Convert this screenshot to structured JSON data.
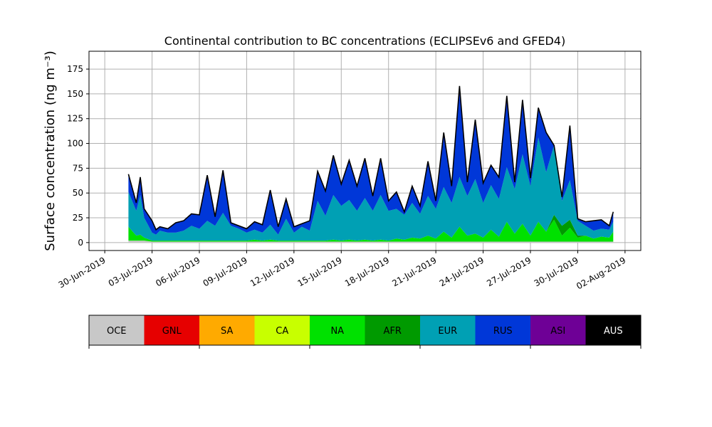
{
  "chart_data": {
    "type": "area",
    "title": "Continental contribution to BC concentrations (ECLIPSEv6 and GFED4)",
    "ylabel": "Surface concentration (ng m⁻³)",
    "xlabel": "",
    "xlim": [
      "2019-06-29",
      "2019-08-03"
    ],
    "ylim": [
      -8,
      193
    ],
    "yticks": [
      0,
      25,
      50,
      75,
      100,
      125,
      150,
      175
    ],
    "xticks": [
      "30-Jun-2019",
      "03-Jul-2019",
      "06-Jul-2019",
      "09-Jul-2019",
      "12-Jul-2019",
      "15-Jul-2019",
      "18-Jul-2019",
      "21-Jul-2019",
      "24-Jul-2019",
      "27-Jul-2019",
      "30-Jul-2019",
      "02-Aug-2019"
    ],
    "xtick_dates": [
      "2019-06-30",
      "2019-07-03",
      "2019-07-06",
      "2019-07-09",
      "2019-07-12",
      "2019-07-15",
      "2019-07-18",
      "2019-07-21",
      "2019-07-24",
      "2019-07-27",
      "2019-07-30",
      "2019-08-02"
    ],
    "grid": true,
    "stacked": true,
    "series_order": [
      "OCE",
      "GNL",
      "SA",
      "CA",
      "NA",
      "AFR",
      "EUR",
      "RUS",
      "ASI",
      "AUS"
    ],
    "colors": {
      "OCE": "#c8c8c8",
      "GNL": "#e60000",
      "SA": "#ffaa00",
      "CA": "#c8ff00",
      "NA": "#00e100",
      "AFR": "#009a00",
      "EUR": "#00a0b4",
      "RUS": "#0037d8",
      "ASI": "#6e0096",
      "AUS": "#000000"
    },
    "x": [
      "2019-07-01T12:00",
      "2019-07-02T00:00",
      "2019-07-02T06:00",
      "2019-07-02T12:00",
      "2019-07-03T00:00",
      "2019-07-03T06:00",
      "2019-07-03T12:00",
      "2019-07-04T00:00",
      "2019-07-04T12:00",
      "2019-07-05T00:00",
      "2019-07-05T12:00",
      "2019-07-06T00:00",
      "2019-07-06T12:00",
      "2019-07-07T00:00",
      "2019-07-07T12:00",
      "2019-07-08T00:00",
      "2019-07-08T12:00",
      "2019-07-09T00:00",
      "2019-07-09T12:00",
      "2019-07-10T00:00",
      "2019-07-10T12:00",
      "2019-07-11T00:00",
      "2019-07-11T12:00",
      "2019-07-12T00:00",
      "2019-07-12T12:00",
      "2019-07-13T00:00",
      "2019-07-13T12:00",
      "2019-07-14T00:00",
      "2019-07-14T12:00",
      "2019-07-15T00:00",
      "2019-07-15T12:00",
      "2019-07-16T00:00",
      "2019-07-16T12:00",
      "2019-07-17T00:00",
      "2019-07-17T12:00",
      "2019-07-18T00:00",
      "2019-07-18T12:00",
      "2019-07-19T00:00",
      "2019-07-19T12:00",
      "2019-07-20T00:00",
      "2019-07-20T12:00",
      "2019-07-21T00:00",
      "2019-07-21T12:00",
      "2019-07-22T00:00",
      "2019-07-22T12:00",
      "2019-07-23T00:00",
      "2019-07-23T12:00",
      "2019-07-24T00:00",
      "2019-07-24T12:00",
      "2019-07-25T00:00",
      "2019-07-25T12:00",
      "2019-07-26T00:00",
      "2019-07-26T12:00",
      "2019-07-27T00:00",
      "2019-07-27T12:00",
      "2019-07-28T00:00",
      "2019-07-28T12:00",
      "2019-07-29T00:00",
      "2019-07-29T12:00",
      "2019-07-30T00:00",
      "2019-07-30T12:00",
      "2019-07-31T00:00",
      "2019-07-31T12:00",
      "2019-08-01T00:00",
      "2019-08-01T06:00"
    ],
    "series": [
      {
        "name": "OCE",
        "values": [
          2,
          2,
          2,
          2,
          1,
          1,
          1,
          1,
          1,
          1,
          1,
          1,
          1,
          1,
          1,
          1,
          1,
          1,
          1,
          1,
          1,
          1,
          1,
          1,
          1,
          1,
          1,
          1,
          1,
          1,
          1,
          1,
          1,
          1,
          1,
          1,
          1,
          1,
          1,
          1,
          1,
          1,
          1,
          1,
          1,
          1,
          1,
          1,
          1,
          1,
          1,
          1,
          1,
          1,
          1,
          1,
          1,
          1,
          1,
          1,
          1,
          1,
          1,
          1,
          1
        ]
      },
      {
        "name": "GNL",
        "values": [
          0,
          0,
          0,
          0,
          0,
          0,
          0,
          0,
          0,
          0,
          0,
          0,
          0,
          0,
          0,
          0,
          0,
          0,
          0,
          0,
          0,
          0,
          0,
          0,
          0,
          0,
          0,
          0,
          0,
          0,
          0,
          0,
          0,
          0,
          0,
          0,
          0,
          0,
          0,
          0,
          0,
          0,
          0,
          0,
          0,
          0,
          0,
          0,
          0,
          0,
          0,
          0,
          0,
          0,
          0,
          0,
          0,
          0,
          0,
          0,
          0,
          0,
          0,
          0,
          0
        ]
      },
      {
        "name": "SA",
        "values": [
          0,
          0,
          0,
          0,
          0,
          0,
          0,
          0,
          0,
          0,
          0,
          0,
          0,
          0,
          0,
          0,
          0,
          0,
          0,
          0,
          0,
          0,
          0,
          0,
          0,
          0,
          0,
          0,
          0,
          0,
          0,
          0,
          0,
          0,
          0,
          0,
          0,
          0,
          0,
          0,
          0,
          0,
          0,
          0,
          0,
          0,
          0,
          0,
          0,
          0,
          0,
          0,
          0,
          0,
          0,
          0,
          0,
          0,
          0,
          0,
          0,
          0,
          0,
          0,
          0
        ]
      },
      {
        "name": "CA",
        "values": [
          0,
          0,
          0,
          0,
          0,
          0,
          0,
          0,
          0,
          0,
          0,
          0,
          0,
          0,
          0,
          0,
          0,
          0,
          0,
          0,
          0,
          0,
          0,
          0,
          0,
          0,
          0,
          0,
          0,
          0,
          0,
          0,
          0,
          0,
          0,
          0,
          0,
          0,
          0,
          0,
          0,
          0,
          0,
          0,
          0,
          0,
          0,
          0,
          0,
          0,
          0,
          0,
          0,
          0,
          0,
          0,
          0,
          0,
          0,
          0,
          0,
          0,
          0,
          0,
          0
        ]
      },
      {
        "name": "NA",
        "values": [
          14,
          5,
          6,
          3,
          1,
          1,
          1,
          1,
          1,
          1,
          1,
          1,
          1,
          1,
          1,
          1,
          1,
          1,
          2,
          1,
          2,
          1,
          1,
          1,
          1,
          1,
          1,
          1,
          2,
          1,
          2,
          1,
          2,
          1,
          2,
          1,
          3,
          2,
          4,
          3,
          6,
          3,
          10,
          4,
          15,
          6,
          8,
          4,
          12,
          5,
          20,
          8,
          18,
          6,
          20,
          10,
          22,
          6,
          14,
          4,
          6,
          3,
          5,
          4,
          10
        ]
      },
      {
        "name": "AFR",
        "values": [
          0,
          0,
          0,
          0,
          0,
          0,
          0,
          0,
          0,
          0,
          0,
          0,
          0,
          0,
          0,
          0,
          0,
          0,
          0,
          0,
          0,
          0,
          0,
          0,
          0,
          0,
          0,
          0,
          0,
          0,
          0,
          0,
          0,
          0,
          0,
          0,
          0,
          0,
          0,
          0,
          0,
          0,
          0,
          0,
          0,
          0,
          0,
          0,
          0,
          0,
          0,
          0,
          0,
          0,
          0,
          0,
          5,
          10,
          8,
          2,
          0,
          0,
          0,
          0,
          0
        ]
      },
      {
        "name": "EUR",
        "values": [
          35,
          25,
          40,
          20,
          8,
          6,
          10,
          8,
          8,
          10,
          15,
          12,
          20,
          15,
          28,
          15,
          12,
          8,
          10,
          8,
          15,
          6,
          22,
          8,
          14,
          10,
          40,
          25,
          45,
          35,
          40,
          30,
          42,
          30,
          45,
          30,
          30,
          25,
          35,
          25,
          40,
          30,
          45,
          35,
          50,
          40,
          55,
          35,
          45,
          38,
          55,
          45,
          70,
          50,
          85,
          60,
          70,
          25,
          40,
          15,
          10,
          8,
          8,
          8,
          10
        ]
      },
      {
        "name": "RUS",
        "values": [
          18,
          8,
          18,
          9,
          12,
          5,
          4,
          4,
          10,
          10,
          12,
          14,
          46,
          9,
          43,
          3,
          3,
          4,
          8,
          8,
          35,
          8,
          20,
          6,
          3,
          10,
          30,
          25,
          40,
          22,
          40,
          25,
          40,
          15,
          37,
          10,
          17,
          3,
          17,
          8,
          35,
          8,
          55,
          17,
          92,
          14,
          60,
          20,
          20,
          22,
          72,
          7,
          55,
          8,
          30,
          40,
          0,
          4,
          55,
          2,
          4,
          10,
          9,
          4,
          10
        ]
      },
      {
        "name": "ASI",
        "values": [
          0,
          0,
          0,
          0,
          0,
          0,
          0,
          0,
          0,
          0,
          0,
          0,
          0,
          0,
          0,
          0,
          0,
          0,
          0,
          0,
          0,
          0,
          0,
          0,
          0,
          0,
          0,
          0,
          0,
          0,
          0,
          0,
          0,
          0,
          0,
          0,
          0,
          0,
          0,
          0,
          0,
          0,
          0,
          0,
          0,
          0,
          0,
          0,
          0,
          0,
          0,
          0,
          0,
          0,
          0,
          0,
          0,
          0,
          0,
          0,
          0,
          0,
          0,
          0,
          0
        ]
      },
      {
        "name": "AUS",
        "values": [
          0,
          0,
          0,
          0,
          0,
          0,
          0,
          0,
          0,
          0,
          0,
          0,
          0,
          0,
          0,
          0,
          0,
          0,
          0,
          0,
          0,
          0,
          0,
          0,
          0,
          0,
          0,
          0,
          0,
          0,
          0,
          0,
          0,
          0,
          0,
          0,
          0,
          0,
          0,
          0,
          0,
          0,
          0,
          0,
          0,
          0,
          0,
          0,
          0,
          0,
          0,
          0,
          0,
          0,
          0,
          0,
          0,
          0,
          0,
          0,
          0,
          0,
          0,
          0,
          0
        ]
      }
    ],
    "total_line_color": "#000000"
  }
}
